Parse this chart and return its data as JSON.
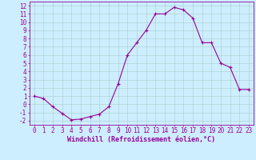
{
  "x": [
    0,
    1,
    2,
    3,
    4,
    5,
    6,
    7,
    8,
    9,
    10,
    11,
    12,
    13,
    14,
    15,
    16,
    17,
    18,
    19,
    20,
    21,
    22,
    23
  ],
  "y": [
    1,
    0.7,
    -0.3,
    -1.1,
    -1.9,
    -1.8,
    -1.5,
    -1.2,
    -0.3,
    2.5,
    6.0,
    7.5,
    9.0,
    11.0,
    11.0,
    11.8,
    11.5,
    10.5,
    7.5,
    7.5,
    5.0,
    4.5,
    1.8,
    1.8
  ],
  "line_color": "#990099",
  "marker": "+",
  "marker_size": 3,
  "marker_linewidth": 0.8,
  "xlabel": "Windchill (Refroidissement éolien,°C)",
  "xlabel_fontsize": 6,
  "bg_color": "#cceeff",
  "grid_color": "#aacccc",
  "xlim": [
    -0.5,
    23.5
  ],
  "ylim": [
    -2.5,
    12.5
  ],
  "yticks": [
    -2,
    -1,
    0,
    1,
    2,
    3,
    4,
    5,
    6,
    7,
    8,
    9,
    10,
    11,
    12
  ],
  "xticks": [
    0,
    1,
    2,
    3,
    4,
    5,
    6,
    7,
    8,
    9,
    10,
    11,
    12,
    13,
    14,
    15,
    16,
    17,
    18,
    19,
    20,
    21,
    22,
    23
  ],
  "tick_fontsize": 5.5,
  "tick_color": "#990099",
  "axis_color": "#990099",
  "linewidth": 0.8
}
